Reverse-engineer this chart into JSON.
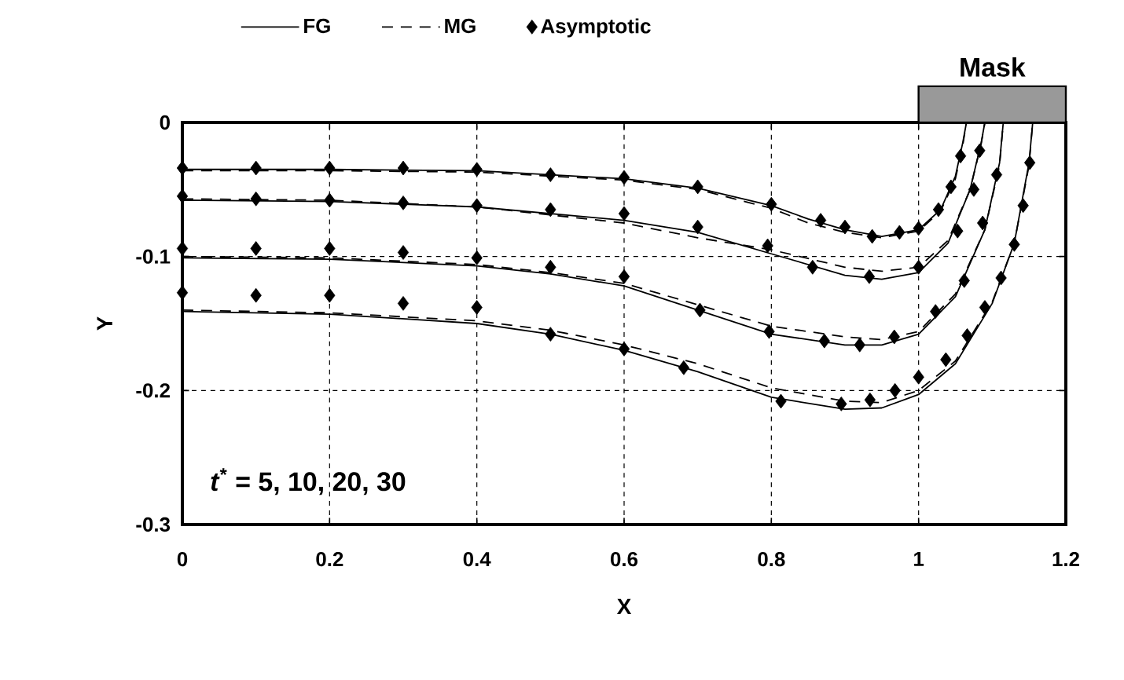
{
  "chart_data": {
    "type": "line",
    "xlabel": "X",
    "ylabel": "Y",
    "xlim": [
      0,
      1.2
    ],
    "ylim": [
      -0.3,
      0
    ],
    "xticks": [
      0,
      0.2,
      0.4,
      0.6,
      0.8,
      1,
      1.2
    ],
    "yticks": [
      -0.3,
      -0.2,
      -0.1,
      0
    ],
    "grid": true,
    "legend": "top",
    "annotations": [
      "*t*$^{*}$ = 5, 10, 20, 30",
      "Mask"
    ],
    "series": [
      {
        "name": "FG",
        "type": "line",
        "line_style": "solid",
        "color": "#000000",
        "x": [
          0,
          0.2,
          0.4,
          0.6,
          0.7,
          0.8,
          0.85,
          0.9,
          0.95,
          1.0,
          1.03,
          1.05,
          1.06,
          1.065
        ],
        "values": [
          -0.035,
          -0.035,
          -0.036,
          -0.042,
          -0.049,
          -0.062,
          -0.072,
          -0.08,
          -0.085,
          -0.08,
          -0.065,
          -0.04,
          -0.015,
          0
        ]
      },
      {
        "type": "line",
        "line_style": "solid",
        "color": "#000000",
        "x": [
          0,
          0.2,
          0.4,
          0.6,
          0.7,
          0.8,
          0.9,
          0.95,
          1.0,
          1.04,
          1.07,
          1.085,
          1.09
        ],
        "values": [
          -0.058,
          -0.059,
          -0.063,
          -0.073,
          -0.082,
          -0.098,
          -0.114,
          -0.117,
          -0.112,
          -0.09,
          -0.05,
          -0.015,
          0
        ]
      },
      {
        "type": "line",
        "line_style": "solid",
        "color": "#000000",
        "x": [
          0,
          0.2,
          0.4,
          0.5,
          0.6,
          0.7,
          0.8,
          0.9,
          0.95,
          1.0,
          1.05,
          1.09,
          1.11,
          1.115
        ],
        "values": [
          -0.101,
          -0.102,
          -0.107,
          -0.113,
          -0.122,
          -0.14,
          -0.158,
          -0.166,
          -0.166,
          -0.158,
          -0.13,
          -0.08,
          -0.03,
          0
        ]
      },
      {
        "type": "line",
        "line_style": "solid",
        "color": "#000000",
        "x": [
          0,
          0.2,
          0.4,
          0.5,
          0.6,
          0.7,
          0.8,
          0.9,
          0.95,
          1.0,
          1.05,
          1.1,
          1.13,
          1.15,
          1.155
        ],
        "values": [
          -0.141,
          -0.143,
          -0.15,
          -0.158,
          -0.17,
          -0.186,
          -0.205,
          -0.214,
          -0.213,
          -0.203,
          -0.18,
          -0.135,
          -0.09,
          -0.03,
          0
        ]
      },
      {
        "name": "MG",
        "type": "line",
        "line_style": "dashed",
        "color": "#000000",
        "x": [
          0,
          0.2,
          0.4,
          0.6,
          0.7,
          0.8,
          0.85,
          0.9,
          0.95,
          1.0,
          1.03,
          1.05,
          1.06,
          1.065
        ],
        "values": [
          -0.036,
          -0.036,
          -0.037,
          -0.043,
          -0.05,
          -0.064,
          -0.075,
          -0.082,
          -0.086,
          -0.081,
          -0.066,
          -0.042,
          -0.017,
          0
        ]
      },
      {
        "type": "line",
        "line_style": "dashed",
        "color": "#000000",
        "x": [
          0,
          0.2,
          0.4,
          0.6,
          0.7,
          0.8,
          0.9,
          0.95,
          1.0,
          1.04,
          1.07,
          1.085,
          1.09
        ],
        "values": [
          -0.057,
          -0.058,
          -0.063,
          -0.075,
          -0.086,
          -0.095,
          -0.108,
          -0.111,
          -0.108,
          -0.088,
          -0.05,
          -0.016,
          0
        ]
      },
      {
        "type": "line",
        "line_style": "dashed",
        "color": "#000000",
        "x": [
          0,
          0.2,
          0.4,
          0.5,
          0.6,
          0.7,
          0.8,
          0.9,
          0.95,
          1.0,
          1.05,
          1.09,
          1.11,
          1.115
        ],
        "values": [
          -0.1,
          -0.101,
          -0.106,
          -0.112,
          -0.12,
          -0.136,
          -0.152,
          -0.16,
          -0.162,
          -0.156,
          -0.128,
          -0.08,
          -0.032,
          0
        ]
      },
      {
        "type": "line",
        "line_style": "dashed",
        "color": "#000000",
        "x": [
          0,
          0.2,
          0.4,
          0.5,
          0.6,
          0.7,
          0.8,
          0.9,
          0.95,
          1.0,
          1.05,
          1.1,
          1.13,
          1.15,
          1.155
        ],
        "values": [
          -0.14,
          -0.142,
          -0.148,
          -0.155,
          -0.166,
          -0.18,
          -0.198,
          -0.208,
          -0.209,
          -0.2,
          -0.178,
          -0.134,
          -0.09,
          -0.032,
          0
        ]
      },
      {
        "name": "Asymptotic",
        "type": "scatter",
        "marker": "diamond",
        "color": "#000000",
        "x": [
          0,
          0.1,
          0.2,
          0.3,
          0.4,
          0.5,
          0.6,
          0.7,
          0.8,
          0.867,
          0.9,
          0.937,
          0.974,
          1.0,
          1.027,
          1.044,
          1.057
        ],
        "values": [
          -0.034,
          -0.034,
          -0.034,
          -0.034,
          -0.035,
          -0.039,
          -0.041,
          -0.048,
          -0.061,
          -0.073,
          -0.078,
          -0.085,
          -0.082,
          -0.079,
          -0.065,
          -0.048,
          -0.025
        ]
      },
      {
        "type": "scatter",
        "marker": "diamond",
        "color": "#000000",
        "x": [
          0,
          0.1,
          0.2,
          0.3,
          0.4,
          0.5,
          0.6,
          0.7,
          0.795,
          0.856,
          0.933,
          1.0,
          1.053,
          1.075,
          1.083
        ],
        "values": [
          -0.055,
          -0.057,
          -0.058,
          -0.06,
          -0.062,
          -0.065,
          -0.068,
          -0.078,
          -0.092,
          -0.108,
          -0.115,
          -0.108,
          -0.081,
          -0.05,
          -0.021
        ]
      },
      {
        "type": "scatter",
        "marker": "diamond",
        "color": "#000000",
        "x": [
          0,
          0.1,
          0.2,
          0.3,
          0.4,
          0.5,
          0.6,
          0.703,
          0.797,
          0.872,
          0.92,
          0.967,
          1.023,
          1.062,
          1.087,
          1.106
        ],
        "values": [
          -0.094,
          -0.094,
          -0.094,
          -0.097,
          -0.101,
          -0.108,
          -0.115,
          -0.14,
          -0.156,
          -0.163,
          -0.166,
          -0.16,
          -0.141,
          -0.118,
          -0.075,
          -0.039
        ]
      },
      {
        "type": "scatter",
        "marker": "diamond",
        "color": "#000000",
        "x": [
          0,
          0.1,
          0.2,
          0.3,
          0.4,
          0.5,
          0.6,
          0.681,
          0.813,
          0.895,
          0.934,
          0.968,
          1.0,
          1.037,
          1.066,
          1.09,
          1.112,
          1.13,
          1.142,
          1.151
        ],
        "values": [
          -0.127,
          -0.129,
          -0.129,
          -0.135,
          -0.138,
          -0.158,
          -0.169,
          -0.183,
          -0.208,
          -0.21,
          -0.207,
          -0.2,
          -0.19,
          -0.177,
          -0.159,
          -0.138,
          -0.116,
          -0.091,
          -0.062,
          -0.03
        ]
      }
    ]
  }
}
